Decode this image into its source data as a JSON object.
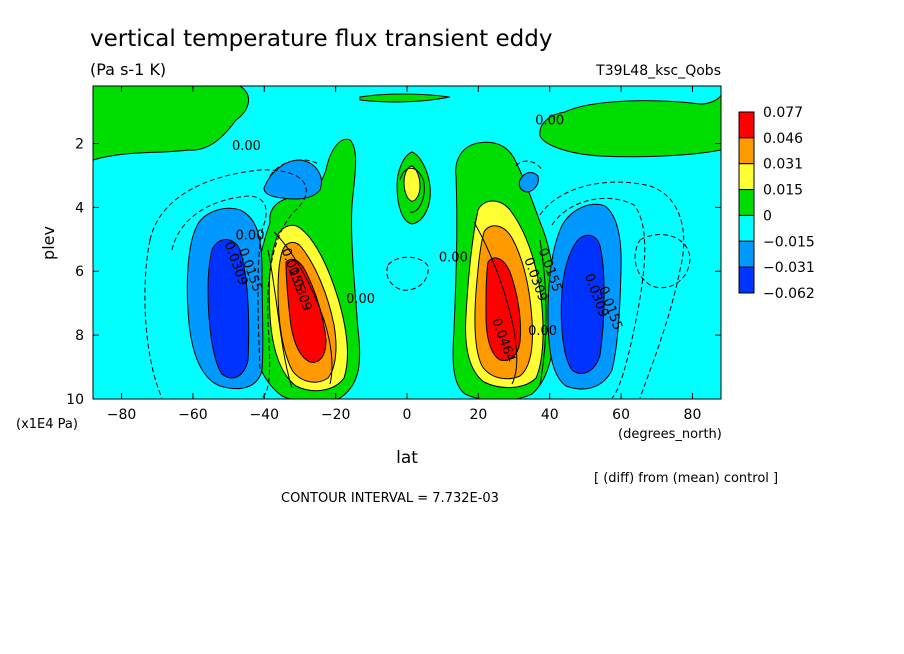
{
  "figure": {
    "title": "vertical temperature flux transient eddy",
    "units": "(Pa s-1 K)",
    "run_id": "T39L48_ksc_Qobs",
    "footnote": "[ (diff) from (mean) control ]",
    "contour_interval": "CONTOUR INTERVAL = 7.732E-03"
  },
  "chart_data": {
    "type": "heatmap",
    "title": "vertical temperature flux transient eddy",
    "subtitle": "(Pa s-1 K)",
    "xlabel": "lat",
    "xunits": "(degrees_north)",
    "ylabel": "plev",
    "yunits": "(x1E4 Pa)",
    "xlim": [
      -88,
      88
    ],
    "ylim": [
      10,
      0.2
    ],
    "y_inverted": true,
    "x_ticks": [
      -80,
      -60,
      -40,
      -20,
      0,
      20,
      40,
      60,
      80
    ],
    "x_tick_labels": [
      "−80",
      "−60",
      "−40",
      "−20",
      "0",
      "20",
      "40",
      "60",
      "80"
    ],
    "y_ticks": [
      2,
      4,
      6,
      8,
      10
    ],
    "y_tick_labels": [
      "2",
      "4",
      "6",
      "8",
      "10"
    ],
    "contour_interval": 0.007732,
    "levels": [
      -0.062,
      -0.031,
      -0.015,
      0,
      0.015,
      0.031,
      0.046,
      0.077
    ],
    "colorbar": {
      "labels": [
        "0.077",
        "0.046",
        "0.031",
        "0.015",
        "0",
        "−0.015",
        "−0.031",
        "−0.062"
      ],
      "colors": [
        "#ff0000",
        "#ff9900",
        "#ffff33",
        "#00dd00",
        "#00ffff",
        "#0099ff",
        "#0033ff"
      ]
    },
    "contour_labels": [
      {
        "text": "0.00",
        "lat": -45,
        "plev": 2.2
      },
      {
        "text": "0.00",
        "lat": 40,
        "plev": 1.4
      },
      {
        "text": "0.00",
        "lat": -13,
        "plev": 7.0
      },
      {
        "text": "0.00",
        "lat": 13,
        "plev": 5.7
      },
      {
        "text": "0.00",
        "lat": 38,
        "plev": 8.0
      },
      {
        "text": "0.00",
        "lat": -44,
        "plev": 5.0
      },
      {
        "text": "0.0155",
        "lat": -33,
        "plev": 6.0
      },
      {
        "text": "0.0309",
        "lat": -31,
        "plev": 6.6
      },
      {
        "text": "0.0309",
        "lat": -49,
        "plev": 5.8
      },
      {
        "text": "0.0155",
        "lat": -45,
        "plev": 6.0
      },
      {
        "text": "0.0464",
        "lat": 26,
        "plev": 8.2
      },
      {
        "text": "0.0309",
        "lat": 35,
        "plev": 6.3
      },
      {
        "text": "0.0155",
        "lat": 39,
        "plev": 6.0
      },
      {
        "text": "0.0309",
        "lat": 52,
        "plev": 6.8
      },
      {
        "text": "0.0155",
        "lat": 56,
        "plev": 7.2
      }
    ],
    "features": [
      {
        "kind": "min",
        "lat": -51,
        "plev": 6.8,
        "value": -0.062
      },
      {
        "kind": "max",
        "lat": -27,
        "plev": 6.8,
        "value": 0.077
      },
      {
        "kind": "max",
        "lat": 27,
        "plev": 7.0,
        "value": 0.077
      },
      {
        "kind": "min",
        "lat": 50,
        "plev": 7.2,
        "value": -0.062
      },
      {
        "kind": "max",
        "lat": 1,
        "plev": 3.2,
        "value": 0.031
      }
    ]
  }
}
